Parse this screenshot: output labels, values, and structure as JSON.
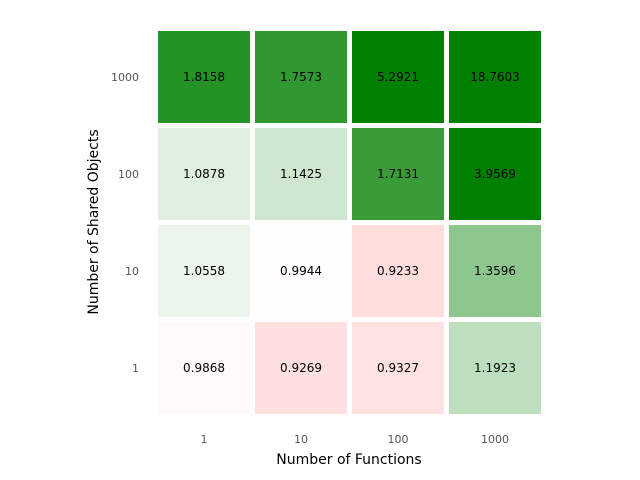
{
  "chart_data": {
    "type": "heatmap",
    "title": "",
    "xlabel": "Number of Functions",
    "ylabel": "Number of Shared Objects",
    "x_categories": [
      "1",
      "10",
      "100",
      "1000"
    ],
    "y_categories": [
      "1000",
      "100",
      "10",
      "1"
    ],
    "values": [
      [
        1.8158,
        1.7573,
        5.2921,
        18.7603
      ],
      [
        1.0878,
        1.1425,
        1.7131,
        3.9569
      ],
      [
        1.0558,
        0.9944,
        0.9233,
        1.3596
      ],
      [
        0.9868,
        0.9269,
        0.9327,
        1.1923
      ]
    ],
    "value_labels": [
      [
        "1.8158",
        "1.7573",
        "5.2921",
        "18.7603"
      ],
      [
        "1.0878",
        "1.1425",
        "1.7131",
        "3.9569"
      ],
      [
        "1.0558",
        "0.9944",
        "0.9233",
        "1.3596"
      ],
      [
        "0.9868",
        "0.9269",
        "0.9327",
        "1.1923"
      ]
    ],
    "colors": {
      "high": "#008000",
      "neutral": "#ffffff",
      "low": "#ff0000"
    },
    "grid": false,
    "legend": "none"
  }
}
